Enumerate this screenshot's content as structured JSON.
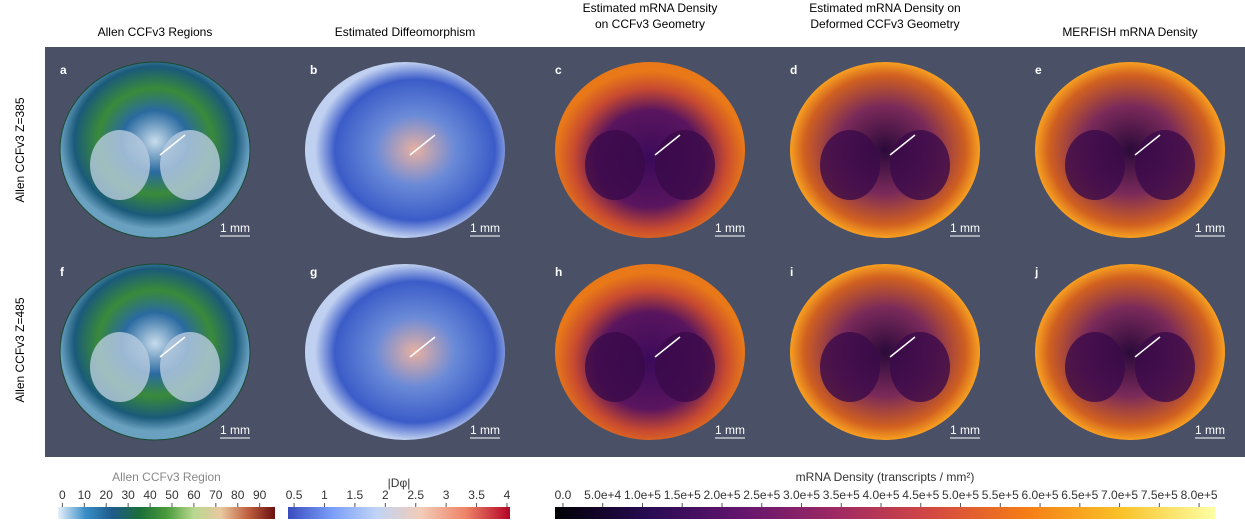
{
  "headers": [
    "Allen CCFv3 Regions",
    "Estimated Diffeomorphism",
    "Estimated mRNA Density\non CCFv3 Geometry",
    "Estimated mRNA Density on\nDeformed CCFv3 Geometry",
    "MERFISH mRNA Density"
  ],
  "row_labels": [
    "Allen CCFv3 Z=385",
    "Allen CCFv3 Z=485"
  ],
  "panels": [
    {
      "letter": "a",
      "scale": "1 mm"
    },
    {
      "letter": "b",
      "scale": "1 mm"
    },
    {
      "letter": "c",
      "scale": "1 mm"
    },
    {
      "letter": "d",
      "scale": "1 mm"
    },
    {
      "letter": "e",
      "scale": "1 mm"
    },
    {
      "letter": "f",
      "scale": "1 mm"
    },
    {
      "letter": "g",
      "scale": "1 mm"
    },
    {
      "letter": "h",
      "scale": "1 mm"
    },
    {
      "letter": "i",
      "scale": "1 mm"
    },
    {
      "letter": "j",
      "scale": "1 mm"
    }
  ],
  "colorbars": [
    {
      "title": "Allen CCFv3 Region",
      "range": [
        -2,
        97
      ],
      "colors": [
        "#e8f0f8",
        "#3a8fc8",
        "#1e5a8a",
        "#1a6e3a",
        "#4a9a3a",
        "#b8d890",
        "#e8c8a0",
        "#c06040",
        "#6a1010"
      ],
      "ticks": [
        0,
        10,
        20,
        30,
        40,
        50,
        60,
        70,
        80,
        90
      ]
    },
    {
      "title": "|Dφ|",
      "range": [
        0.4,
        4.05
      ],
      "colors": [
        "#3b4cc0",
        "#7b9ff9",
        "#c0d4f5",
        "#f2cbb7",
        "#ee8468",
        "#b40426"
      ],
      "ticks": [
        0.5,
        1,
        1.5,
        2,
        2.5,
        3,
        3.5,
        4
      ]
    },
    {
      "title": "mRNA Density (transcripts / mm²)",
      "range": [
        -10000,
        820000
      ],
      "colors": [
        "#000004",
        "#280b54",
        "#65156e",
        "#9f2a63",
        "#d44842",
        "#f57d15",
        "#fac228",
        "#fcffa4"
      ],
      "ticks": [
        {
          "value": 0,
          "label": "0.0"
        },
        {
          "value": 50000,
          "label": "5.0e+4"
        },
        {
          "value": 100000,
          "label": "1.0e+5"
        },
        {
          "value": 150000,
          "label": "1.5e+5"
        },
        {
          "value": 200000,
          "label": "2.0e+5"
        },
        {
          "value": 250000,
          "label": "2.5e+5"
        },
        {
          "value": 300000,
          "label": "3.0e+5"
        },
        {
          "value": 350000,
          "label": "3.5e+5"
        },
        {
          "value": 400000,
          "label": "4.0e+5"
        },
        {
          "value": 450000,
          "label": "4.5e+5"
        },
        {
          "value": 500000,
          "label": "5.0e+5"
        },
        {
          "value": 550000,
          "label": "5.5e+5"
        },
        {
          "value": 600000,
          "label": "6.0e+5"
        },
        {
          "value": 650000,
          "label": "6.5e+5"
        },
        {
          "value": 700000,
          "label": "7.0e+5"
        },
        {
          "value": 750000,
          "label": "7.5e+5"
        },
        {
          "value": 800000,
          "label": "8.0e+5"
        }
      ]
    }
  ]
}
